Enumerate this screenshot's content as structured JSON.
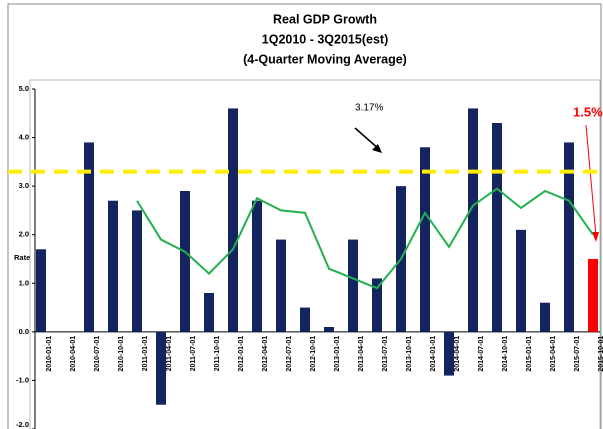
{
  "chart_data": {
    "type": "bar",
    "title": [
      "Real GDP Growth",
      "1Q2010 - 3Q2015(est)",
      "(4-Quarter Moving Average)"
    ],
    "y_label": "Rate",
    "categories": [
      "2010-01-01",
      "2010-04-01",
      "2010-07-01",
      "2010-10-01",
      "2011-01-01",
      "2011-04-01",
      "2011-07-01",
      "2011-10-01",
      "2012-01-01",
      "2012-04-01",
      "2012-07-01",
      "2012-10-01",
      "2013-01-01",
      "2013-04-01",
      "2013-07-01",
      "2013-10-01",
      "2014-01-01",
      "2014-04-01",
      "2014-07-01",
      "2014-10-01",
      "2015-01-01",
      "2015-04-01",
      "2015-07-01",
      "2015-10-01"
    ],
    "values": [
      1.7,
      null,
      3.9,
      2.7,
      2.5,
      -1.5,
      2.9,
      0.8,
      4.6,
      2.7,
      1.9,
      0.5,
      0.1,
      1.9,
      1.1,
      3.0,
      3.8,
      -0.9,
      4.6,
      4.3,
      2.1,
      0.6,
      3.9,
      1.5
    ],
    "colors": [
      "#14245f",
      "#14245f",
      "#14245f",
      "#14245f",
      "#14245f",
      "#14245f",
      "#14245f",
      "#14245f",
      "#14245f",
      "#14245f",
      "#14245f",
      "#14245f",
      "#14245f",
      "#14245f",
      "#14245f",
      "#14245f",
      "#14245f",
      "#14245f",
      "#14245f",
      "#14245f",
      "#14245f",
      "#14245f",
      "#14245f",
      "#ff0000"
    ],
    "moving_average": {
      "color": "#22b14c",
      "values": [
        null,
        null,
        null,
        null,
        2.7,
        1.9,
        1.65,
        1.2,
        1.7,
        2.75,
        2.5,
        2.45,
        1.3,
        1.1,
        0.9,
        1.5,
        2.45,
        1.75,
        2.6,
        2.95,
        2.55,
        2.9,
        2.7,
        2.0
      ]
    },
    "reference_line": {
      "value": 3.3,
      "color": "#ffee00"
    },
    "annotations": [
      "3.17%",
      "1.5%"
    ],
    "ylim": [
      -2,
      5
    ],
    "yticks": [
      {
        "value": 5,
        "label": "5.0"
      },
      {
        "value": 4,
        "label": "4.0"
      },
      {
        "value": 3,
        "label": "3.0"
      },
      {
        "value": 2,
        "label": "2.0"
      },
      {
        "value": 1,
        "label": "1.0"
      },
      {
        "value": 0,
        "label": "0.0"
      },
      {
        "value": -1,
        "label": "-1.0"
      },
      {
        "value": -2,
        "label": "-2.0"
      }
    ]
  }
}
